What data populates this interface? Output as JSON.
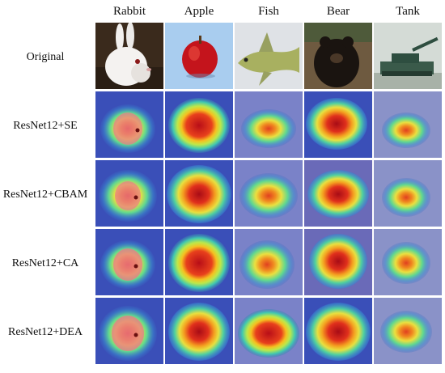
{
  "columns": [
    "Rabbit",
    "Apple",
    "Fish",
    "Bear",
    "Tank"
  ],
  "rows": [
    "Original",
    "ResNet12+SE",
    "ResNet12+CBAM",
    "ResNet12+CA",
    "ResNet12+DEA"
  ],
  "colors": {
    "heat_bg": "#3a4fb8",
    "heat_hot": "#c0101a",
    "heat_warm": "#f0d020",
    "heat_mid": "#4fd0a0",
    "original_apple_bg": "#a9cdef",
    "original_fish_bg": "#dfe2e6",
    "original_tank_bg": "#d4dbd6"
  }
}
